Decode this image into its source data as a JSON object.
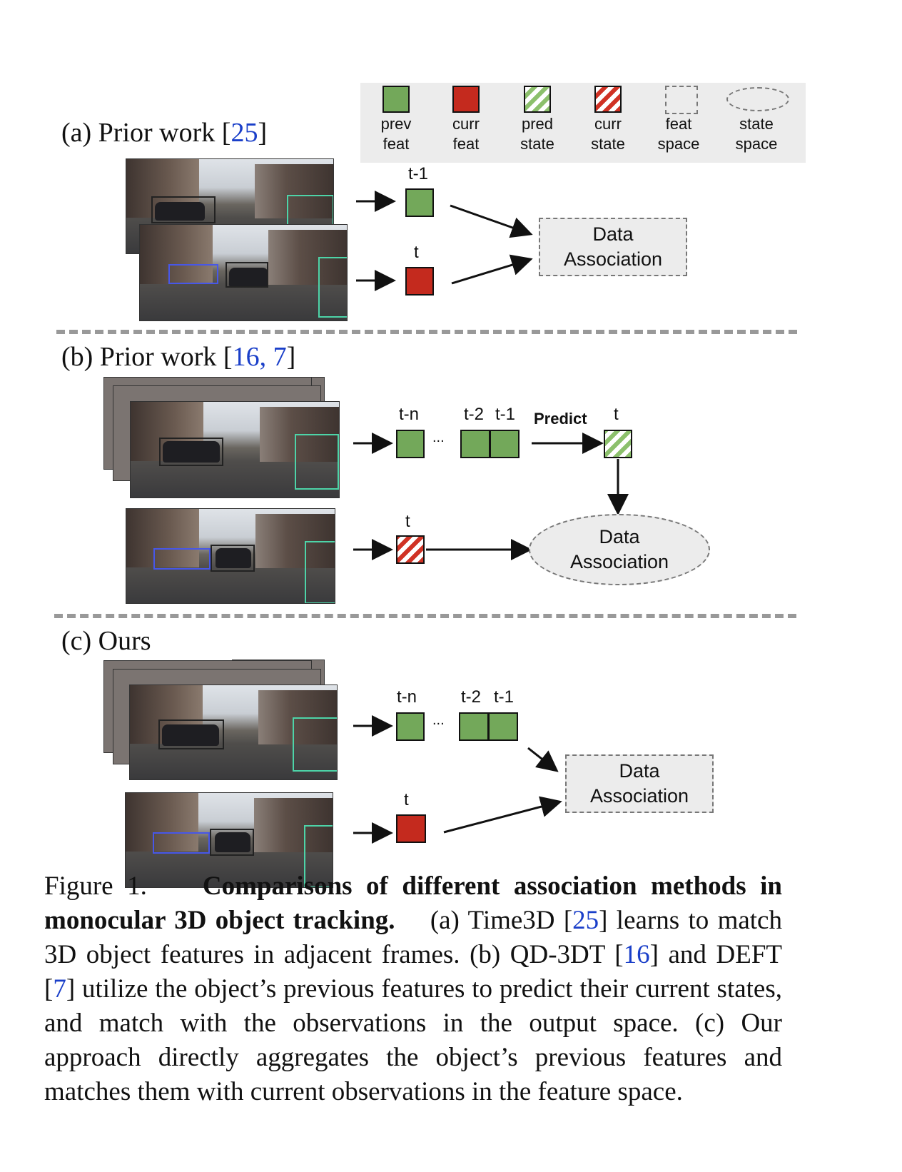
{
  "legend": [
    {
      "swatch": "green-solid",
      "line1": "prev",
      "line2": "feat"
    },
    {
      "swatch": "red-solid",
      "line1": "curr",
      "line2": "feat"
    },
    {
      "swatch": "green-hatched",
      "line1": "pred",
      "line2": "state"
    },
    {
      "swatch": "red-hatched",
      "line1": "curr",
      "line2": "state"
    },
    {
      "swatch": "dashed-box",
      "line1": "feat",
      "line2": "space"
    },
    {
      "swatch": "dashed-ellipse",
      "line1": "state",
      "line2": "space"
    }
  ],
  "panel_a": {
    "label": "(a) Prior work [",
    "cite": "25",
    "label_end": "]",
    "t_prev": "t-1",
    "t_curr": "t",
    "da_line1": "Data",
    "da_line2": "Association"
  },
  "panel_b": {
    "label": "(b) Prior work [",
    "cite": "16, 7",
    "label_end": "]",
    "tn": "t-n",
    "dots": "...",
    "t2": "t-2",
    "t1": "t-1",
    "predict": "Predict",
    "t_pred": "t",
    "t_curr": "t",
    "da_line1": "Data",
    "da_line2": "Association"
  },
  "panel_c": {
    "label": "(c) Ours",
    "tn": "t-n",
    "dots": "...",
    "t2": "t-2",
    "t1": "t-1",
    "t_curr": "t",
    "da_line1": "Data",
    "da_line2": "Association"
  },
  "caption": {
    "fig": "Figure 1.",
    "bold": "Comparisons of different association methods in monocular 3D object tracking.",
    "a_pre": "(a) Time3D [",
    "a_cite": "25",
    "a_post": "] learns to match 3D object features in adjacent frames. (b) QD-3DT [",
    "b_cite1": "16",
    "b_mid": "] and DEFT [",
    "b_cite2": "7",
    "b_post": "] utilize the object’s previous features to predict their current states, and match with the observations in the output space. (c) Our approach directly aggregates the object’s previous features and matches them with current observations in the feature space."
  },
  "colors": {
    "prev_feat": "#73a85a",
    "curr_feat": "#c42a1e",
    "citation": "#1a3fc9",
    "panel_bg": "#ececec"
  }
}
